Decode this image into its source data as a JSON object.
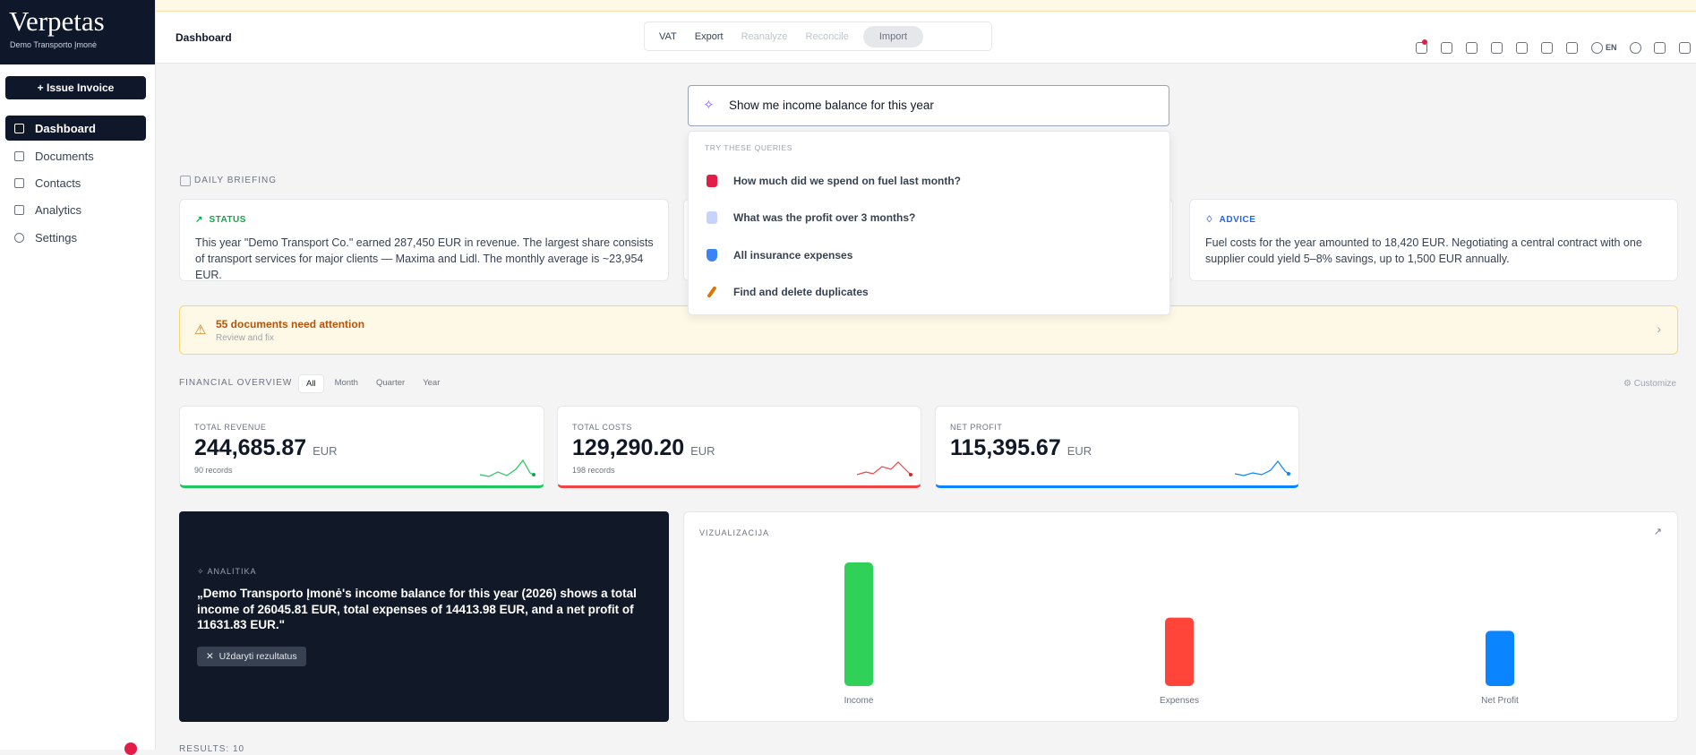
{
  "sidebar": {
    "brand": "Verpetas",
    "subtitle": "Demo Transporto Įmonė",
    "issue_button": "+ Issue Invoice",
    "nav": [
      "Dashboard",
      "Documents",
      "Contacts",
      "Analytics",
      "Settings"
    ]
  },
  "header": {
    "title": "Dashboard",
    "toolbar": [
      "VAT",
      "Export",
      "Reanalyze",
      "Reconcile",
      "Import"
    ],
    "language": "EN"
  },
  "search": {
    "query": "Show me income balance for this year",
    "suggestions_heading": "TRY THESE QUERIES",
    "suggestions": [
      "How much did we spend on fuel last month?",
      "What was the profit over 3 months?",
      "All insurance expenses",
      "Find and delete duplicates"
    ]
  },
  "briefing": {
    "heading": "DAILY BRIEFING",
    "cards": [
      {
        "title": "STATUS",
        "text": "This year \"Demo Transport Co.\" earned 287,450 EUR in revenue. The largest share consists of transport services for major clients — Maxima and Lidl. The monthly average is ~23,954 EUR."
      },
      {
        "title": "ADVICE",
        "text": "Fuel costs for the year amounted to 18,420 EUR. Negotiating a central contract with one supplier could yield 5–8% savings, up to 1,500 EUR annually."
      }
    ]
  },
  "attention": {
    "title": "55 documents need attention",
    "subtitle": "Review and fix"
  },
  "overview": {
    "heading": "FINANCIAL OVERVIEW",
    "tabs": [
      "All",
      "Month",
      "Quarter",
      "Year"
    ],
    "customize": "Customize",
    "metrics": [
      {
        "label": "TOTAL REVENUE",
        "value": "244,685.87",
        "unit": "EUR",
        "records": "90 records"
      },
      {
        "label": "TOTAL COSTS",
        "value": "129,290.20",
        "unit": "EUR",
        "records": "198 records"
      },
      {
        "label": "NET PROFIT",
        "value": "115,395.67",
        "unit": "EUR"
      }
    ]
  },
  "analytics": {
    "heading": "ANALITIKA",
    "text": "„Demo Transporto Įmonė's income balance for this year (2026) shows a total income of 26045.81 EUR, total expenses of 14413.98 EUR, and a net profit of 11631.83 EUR.\"",
    "close_button": "Uždaryti rezultatus"
  },
  "visualization": {
    "heading": "VIZUALIZACIJA",
    "type": "bar",
    "categories": [
      "Income",
      "Expenses",
      "Net Profit"
    ],
    "values": [
      26045.81,
      14413.98,
      11631.83
    ],
    "colors": [
      "#30d158",
      "#ff453a",
      "#0a84ff"
    ]
  },
  "results": {
    "heading": "RESULTS: 10"
  }
}
